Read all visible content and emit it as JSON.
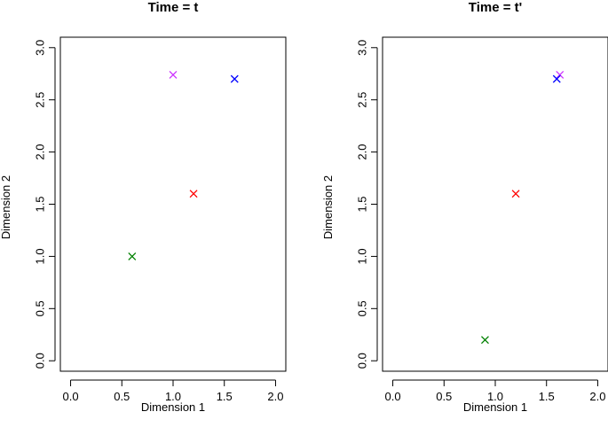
{
  "chart_data": [
    {
      "type": "scatter",
      "title": "Time = t",
      "xlabel": "Dimension 1",
      "ylabel": "Dimension 2",
      "xlim": [
        -0.1,
        2.1
      ],
      "ylim": [
        -0.1,
        3.1
      ],
      "xticks": [
        "0.0",
        "0.5",
        "1.0",
        "1.5",
        "2.0"
      ],
      "yticks": [
        "0.0",
        "0.5",
        "1.0",
        "1.5",
        "2.0",
        "2.5",
        "3.0"
      ],
      "marker": "x",
      "grid": false,
      "points": [
        {
          "x": 1.0,
          "y": 2.74,
          "color": "#cc33ff"
        },
        {
          "x": 1.6,
          "y": 2.7,
          "color": "#0000ff"
        },
        {
          "x": 1.2,
          "y": 1.6,
          "color": "#ff0000"
        },
        {
          "x": 0.6,
          "y": 1.0,
          "color": "#008000"
        }
      ]
    },
    {
      "type": "scatter",
      "title": "Time = t'",
      "xlabel": "Dimension 1",
      "ylabel": "Dimension 2",
      "xlim": [
        -0.1,
        2.1
      ],
      "ylim": [
        -0.1,
        3.1
      ],
      "xticks": [
        "0.0",
        "0.5",
        "1.0",
        "1.5",
        "2.0"
      ],
      "yticks": [
        "0.0",
        "0.5",
        "1.0",
        "1.5",
        "2.0",
        "2.5",
        "3.0"
      ],
      "marker": "x",
      "grid": false,
      "points": [
        {
          "x": 1.63,
          "y": 2.74,
          "color": "#cc33ff"
        },
        {
          "x": 1.6,
          "y": 2.7,
          "color": "#0000ff"
        },
        {
          "x": 1.2,
          "y": 1.6,
          "color": "#ff0000"
        },
        {
          "x": 0.9,
          "y": 0.2,
          "color": "#008000"
        }
      ]
    }
  ]
}
